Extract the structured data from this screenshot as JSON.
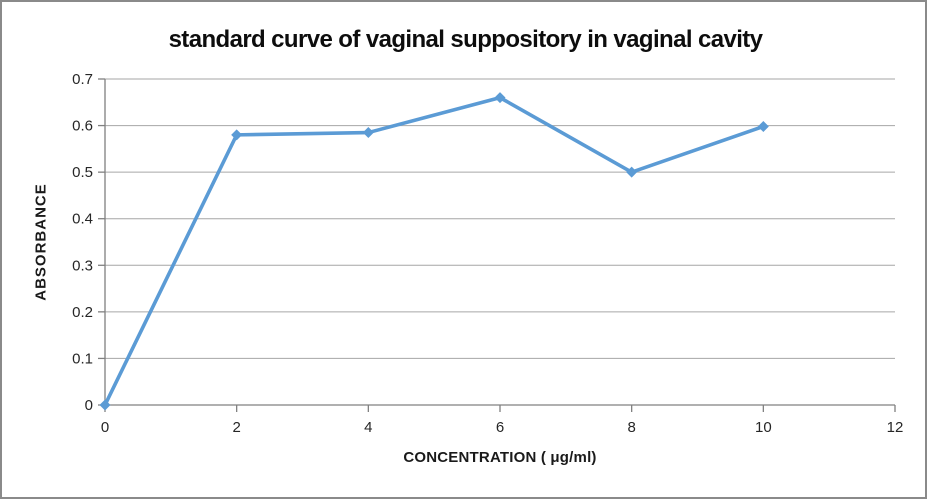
{
  "chart_data": {
    "type": "line",
    "title": "standard curve of vaginal suppository in vaginal cavity",
    "xlabel": "CONCENTRATION ( μg/ml)",
    "ylabel": "ABSORBANCE",
    "x": [
      0,
      2,
      4,
      6,
      8,
      10
    ],
    "y": [
      0,
      0.58,
      0.585,
      0.66,
      0.5,
      0.598
    ],
    "xlim": [
      0,
      12
    ],
    "ylim": [
      0,
      0.7
    ],
    "x_tick_values": [
      0,
      2,
      4,
      6,
      8,
      10,
      12
    ],
    "x_tick_labels": [
      "0",
      "2",
      "4",
      "6",
      "8",
      "10",
      "12"
    ],
    "y_tick_values": [
      0,
      0.1,
      0.2,
      0.3,
      0.4,
      0.5,
      0.6,
      0.7
    ],
    "y_tick_labels": [
      "0",
      "0.1",
      "0.2",
      "0.3",
      "0.4",
      "0.5",
      "0.6",
      "0.7"
    ],
    "grid": "horizontal-only",
    "legend": "none",
    "marker": "diamond",
    "colors": {
      "line": "#5B9BD5",
      "marker": "#5B9BD5",
      "gridline": "#a6a6a6",
      "axis": "#808080",
      "tick_text": "#262626",
      "title_text": "#0d0d0d",
      "border": "#8a8a8a",
      "background": "#ffffff"
    }
  }
}
